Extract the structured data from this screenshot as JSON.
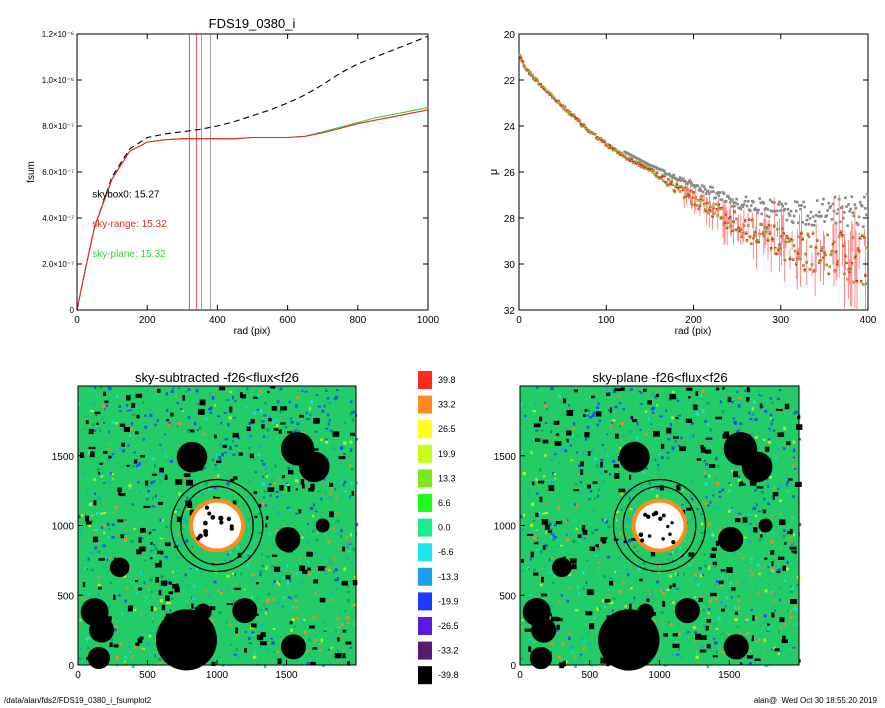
{
  "footer": {
    "path": "/data/alan/fds2/FDS19_0380_i_fsumplot2",
    "user": "alan@",
    "timestamp": "Wed Oct 30 18:55:20 2019"
  },
  "colors": {
    "sky_range": "#e8262a",
    "sky_plane": "#36d23a",
    "skybox0": "#000000",
    "vline_gray": "#888888",
    "sky_bg": "#22cc66"
  },
  "chart_data": [
    {
      "type": "line",
      "title": "FDS19_0380_i",
      "xlabel": "rad (pix)",
      "ylabel": "fsum",
      "xlim": [
        0,
        1000
      ],
      "ylim": [
        0,
        1.2e-06
      ],
      "xticks": [
        "0",
        "200",
        "400",
        "600",
        "800",
        "1000"
      ],
      "yticks": [
        {
          "v": 0,
          "label": "0"
        },
        {
          "v": 2e-07,
          "label": "2.0×10⁻⁷"
        },
        {
          "v": 4e-07,
          "label": "4.0×10⁻⁷"
        },
        {
          "v": 6e-07,
          "label": "6.0×10⁻⁷"
        },
        {
          "v": 8e-07,
          "label": "8.0×10⁻⁷"
        },
        {
          "v": 1e-06,
          "label": "1.0×10⁻⁶"
        },
        {
          "v": 1.2e-06,
          "label": "1.2×10⁻⁶"
        }
      ],
      "vlines": [
        {
          "x": 320,
          "color": "#e8262a"
        },
        {
          "x": 340,
          "color": "#e8262a"
        },
        {
          "x": 355,
          "color": "#888888"
        },
        {
          "x": 380,
          "color": "#888888"
        }
      ],
      "series": [
        {
          "style": "dashed",
          "color": "#000000",
          "x": [
            0,
            20,
            50,
            100,
            150,
            200,
            250,
            300,
            350,
            400,
            450,
            500,
            550,
            600,
            650,
            700,
            750,
            800,
            850,
            900,
            950,
            1000
          ],
          "y": [
            0,
            1.5e-07,
            3.6e-07,
            5.8e-07,
            7e-07,
            7.5e-07,
            7.65e-07,
            7.75e-07,
            7.85e-07,
            8e-07,
            8.2e-07,
            8.45e-07,
            8.7e-07,
            9e-07,
            9.35e-07,
            9.8e-07,
            1.03e-06,
            1.07e-06,
            1.1e-06,
            1.13e-06,
            1.16e-06,
            1.19e-06
          ]
        },
        {
          "style": "solid",
          "color": "#36d23a",
          "x": [
            0,
            20,
            50,
            100,
            150,
            200,
            250,
            300,
            350,
            400,
            450,
            500,
            550,
            600,
            650,
            700,
            750,
            800,
            850,
            900,
            950,
            1000
          ],
          "y": [
            0,
            1.5e-07,
            3.6e-07,
            5.7e-07,
            6.9e-07,
            7.3e-07,
            7.4e-07,
            7.45e-07,
            7.45e-07,
            7.45e-07,
            7.45e-07,
            7.5e-07,
            7.5e-07,
            7.5e-07,
            7.55e-07,
            7.75e-07,
            7.95e-07,
            8.15e-07,
            8.35e-07,
            8.5e-07,
            8.65e-07,
            8.8e-07
          ]
        },
        {
          "style": "solid",
          "color": "#e8262a",
          "x": [
            0,
            20,
            50,
            100,
            150,
            200,
            250,
            300,
            350,
            400,
            450,
            500,
            550,
            600,
            650,
            700,
            750,
            800,
            850,
            900,
            950,
            1000
          ],
          "y": [
            0,
            1.5e-07,
            3.6e-07,
            5.7e-07,
            6.9e-07,
            7.3e-07,
            7.4e-07,
            7.45e-07,
            7.45e-07,
            7.45e-07,
            7.45e-07,
            7.5e-07,
            7.5e-07,
            7.5e-07,
            7.55e-07,
            7.7e-07,
            7.9e-07,
            8.1e-07,
            8.25e-07,
            8.4e-07,
            8.55e-07,
            8.7e-07
          ]
        }
      ],
      "annotations": [
        {
          "text": "skybox0: 15.27",
          "color": "#000000",
          "x": 200,
          "y": 4.9e-07
        },
        {
          "text": "sky-range: 15.32",
          "color": "#e8262a",
          "x": 200,
          "y": 3.6e-07
        },
        {
          "text": "sky-plane: 15.32",
          "color": "#36d23a",
          "x": 200,
          "y": 2.3e-07
        }
      ]
    },
    {
      "type": "scatter",
      "title": "",
      "xlabel": "rad (pix)",
      "ylabel": "μ",
      "xlim": [
        0,
        400
      ],
      "ylim": [
        32,
        20
      ],
      "xticks": [
        "0",
        "100",
        "200",
        "300",
        "400"
      ],
      "yticks": [
        "20",
        "22",
        "24",
        "26",
        "28",
        "30",
        "32"
      ],
      "profile": {
        "x": [
          0,
          5,
          10,
          20,
          40,
          60,
          80,
          100,
          120,
          140,
          160,
          180,
          200,
          220,
          240,
          260,
          280,
          300,
          320,
          340,
          360,
          380,
          400
        ],
        "y": [
          20.8,
          21.3,
          21.6,
          22.0,
          22.8,
          23.5,
          24.2,
          24.8,
          25.3,
          25.7,
          26.1,
          26.6,
          27.0,
          27.4,
          27.8,
          28.1,
          28.4,
          28.6,
          28.8,
          28.9,
          28.9,
          29.0,
          29.1
        ]
      }
    },
    {
      "type": "heatmap",
      "title": "sky-subtracted -f26<flux<f26",
      "xlim": [
        0,
        2000
      ],
      "ylim": [
        0,
        2000
      ],
      "xticks": [
        "0",
        "500",
        "1000",
        "1500"
      ],
      "yticks": [
        "0",
        "500",
        "1000",
        "1500"
      ],
      "ellipses": [
        {
          "cx": 1000,
          "cy": 1000,
          "rx": 330,
          "ry": 330
        },
        {
          "cx": 1000,
          "cy": 1000,
          "rx": 260,
          "ry": 280
        }
      ]
    },
    {
      "type": "heatmap",
      "title": "sky-plane -f26<flux<f26",
      "xlim": [
        0,
        2000
      ],
      "ylim": [
        0,
        2000
      ],
      "xticks": [
        "0",
        "500",
        "1000",
        "1500"
      ],
      "yticks": [
        "0",
        "500",
        "1000",
        "1500"
      ],
      "ellipses": [
        {
          "cx": 1000,
          "cy": 1000,
          "rx": 330,
          "ry": 330
        },
        {
          "cx": 1000,
          "cy": 1000,
          "rx": 260,
          "ry": 280
        }
      ]
    }
  ],
  "colorbar": {
    "levels": [
      "39.8",
      "33.2",
      "26.5",
      "19.9",
      "13.3",
      "6.6",
      "0.0",
      "-6.6",
      "-13.3",
      "-19.9",
      "-26.5",
      "-33.2",
      "-39.8"
    ],
    "colors": [
      "#ff2a1a",
      "#ff8c1a",
      "#ffff1a",
      "#c8ff1a",
      "#7ce81a",
      "#1aff1a",
      "#1aee8c",
      "#1ae8ee",
      "#1aa0ee",
      "#1a3cff",
      "#5a1ae0",
      "#5a1a6e",
      "#000000"
    ]
  },
  "masks": [
    {
      "x": 780,
      "y": 180,
      "r": 220
    },
    {
      "x": 120,
      "y": 380,
      "r": 100
    },
    {
      "x": 170,
      "y": 250,
      "r": 90
    },
    {
      "x": 150,
      "y": 50,
      "r": 80
    },
    {
      "x": 1200,
      "y": 390,
      "r": 90
    },
    {
      "x": 1550,
      "y": 130,
      "r": 90
    },
    {
      "x": 1580,
      "y": 1550,
      "r": 120
    },
    {
      "x": 1700,
      "y": 1420,
      "r": 110
    },
    {
      "x": 820,
      "y": 1490,
      "r": 110
    },
    {
      "x": 1510,
      "y": 900,
      "r": 90
    },
    {
      "x": 300,
      "y": 700,
      "r": 70
    },
    {
      "x": 1760,
      "y": 1000,
      "r": 50
    },
    {
      "x": 900,
      "y": 380,
      "r": 60
    }
  ]
}
